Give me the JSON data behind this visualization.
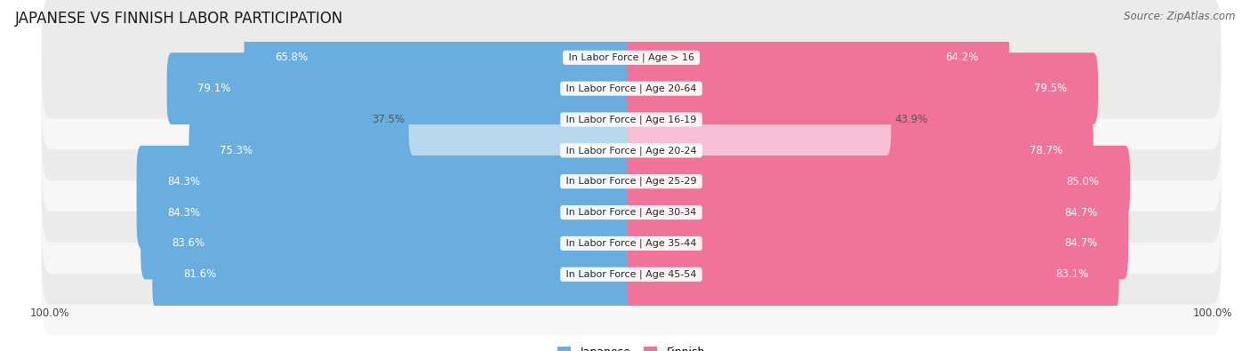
{
  "title": "JAPANESE VS FINNISH LABOR PARTICIPATION",
  "source": "Source: ZipAtlas.com",
  "categories": [
    "In Labor Force | Age > 16",
    "In Labor Force | Age 20-64",
    "In Labor Force | Age 16-19",
    "In Labor Force | Age 20-24",
    "In Labor Force | Age 25-29",
    "In Labor Force | Age 30-34",
    "In Labor Force | Age 35-44",
    "In Labor Force | Age 45-54"
  ],
  "japanese": [
    65.8,
    79.1,
    37.5,
    75.3,
    84.3,
    84.3,
    83.6,
    81.6
  ],
  "finnish": [
    64.2,
    79.5,
    43.9,
    78.7,
    85.0,
    84.7,
    84.7,
    83.1
  ],
  "japanese_color": "#6AAEE0",
  "finnish_color": "#F0739A",
  "japanese_light_color": "#B8D8F0",
  "finnish_light_color": "#F8C0D4",
  "row_bg_dark": "#EBEBEB",
  "row_bg_light": "#F7F7F7",
  "title_fontsize": 12,
  "source_fontsize": 8.5,
  "bar_label_fontsize": 8.5,
  "category_fontsize": 8,
  "legend_fontsize": 9,
  "axis_label_fontsize": 8.5,
  "max_value": 100.0,
  "low_threshold": 50.0
}
